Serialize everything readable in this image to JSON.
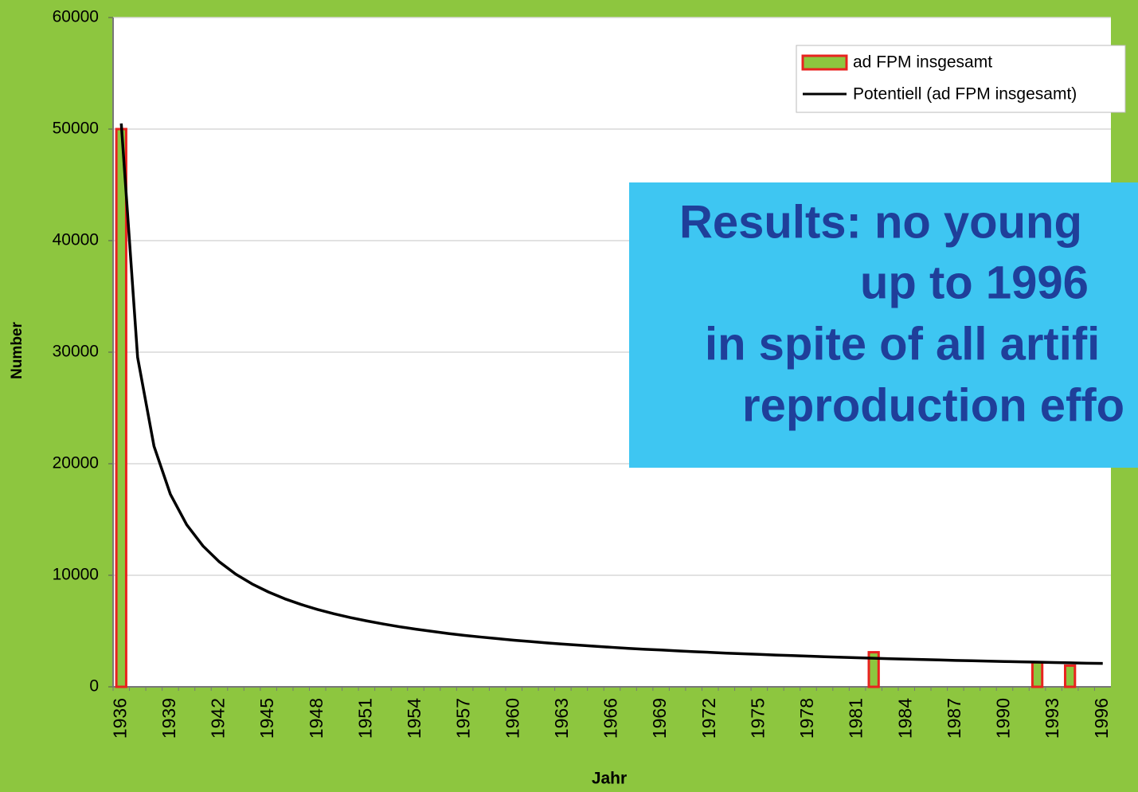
{
  "chart_data": {
    "type": "bar",
    "xlabel": "Jahr",
    "ylabel": "Number",
    "categories": [
      "1936",
      null,
      null,
      "1939",
      null,
      null,
      "1942",
      null,
      null,
      "1945",
      null,
      null,
      "1948",
      null,
      null,
      "1951",
      null,
      null,
      "1954",
      null,
      null,
      "1957",
      null,
      null,
      "1960",
      null,
      null,
      "1963",
      null,
      null,
      "1966",
      null,
      null,
      "1969",
      null,
      null,
      "1972",
      null,
      null,
      "1975",
      null,
      null,
      "1978",
      null,
      null,
      "1981",
      null,
      null,
      "1984",
      null,
      null,
      "1987",
      null,
      null,
      "1990",
      null,
      null,
      "1993",
      null,
      null,
      "1996"
    ],
    "series": [
      {
        "name": "ad FPM insgesamt",
        "type": "bar",
        "color": "#8dc63f",
        "edgecolor": "#e8231f",
        "values": [
          50000,
          0,
          0,
          0,
          0,
          0,
          0,
          0,
          0,
          0,
          0,
          0,
          0,
          0,
          0,
          0,
          0,
          0,
          0,
          0,
          0,
          0,
          0,
          0,
          0,
          0,
          0,
          0,
          0,
          0,
          0,
          0,
          0,
          0,
          0,
          0,
          0,
          0,
          0,
          0,
          0,
          0,
          0,
          0,
          0,
          0,
          3100,
          0,
          0,
          0,
          0,
          0,
          0,
          0,
          0,
          0,
          2200,
          0,
          1900,
          0,
          0
        ]
      },
      {
        "name": "Potentiell (ad FPM insgesamt)",
        "type": "line",
        "color": "#000000",
        "values": [
          50500,
          29530,
          21580,
          17270,
          14530,
          12620,
          11200,
          10100,
          9220,
          8500,
          7890,
          7380,
          6930,
          6550,
          6210,
          5910,
          5640,
          5390,
          5170,
          4970,
          4780,
          4610,
          4460,
          4320,
          4180,
          4060,
          3940,
          3830,
          3730,
          3630,
          3540,
          3450,
          3370,
          3300,
          3220,
          3150,
          3090,
          3020,
          2960,
          2910,
          2850,
          2800,
          2750,
          2700,
          2650,
          2610,
          2560,
          2520,
          2480,
          2450,
          2410,
          2370,
          2340,
          2300,
          2270,
          2240,
          2210,
          2180,
          2150,
          2120,
          2100
        ]
      }
    ],
    "ylim": [
      0,
      60000
    ],
    "yticks": [
      0,
      10000,
      20000,
      30000,
      40000,
      50000,
      60000
    ],
    "grid": true,
    "legend": "upper right",
    "annotation": [
      "Results: no young",
      "up to 1996",
      "in spite of all artifi",
      "reproduction effo"
    ]
  }
}
